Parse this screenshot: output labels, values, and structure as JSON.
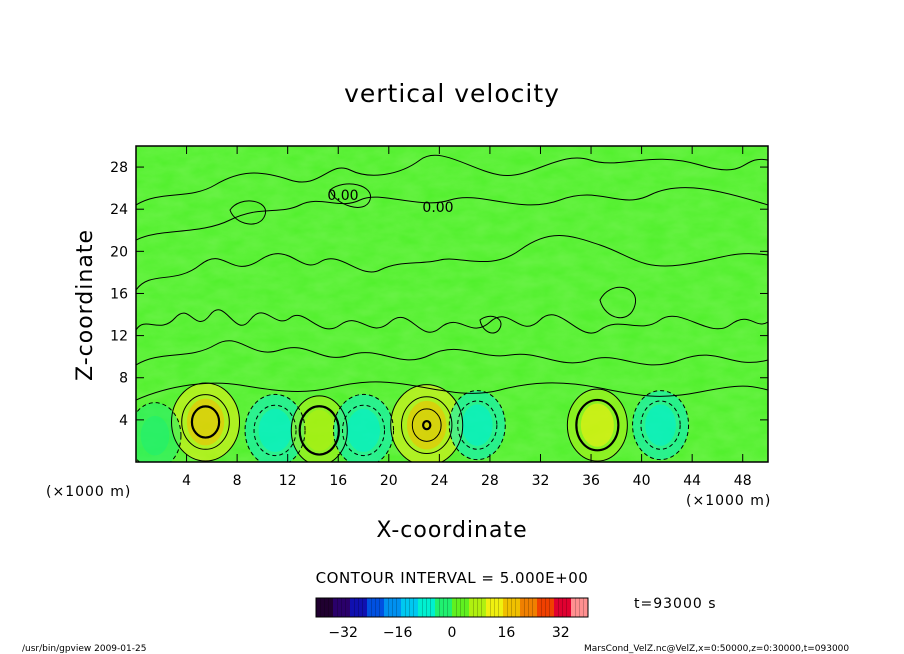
{
  "chart_data": {
    "type": "heatmap",
    "title": "vertical velocity",
    "xlabel": "X-coordinate",
    "ylabel": "Z-coordinate",
    "x_unit": "(×1000 m)",
    "y_unit": "(×1000 m)",
    "xlim": [
      0,
      50
    ],
    "ylim": [
      0,
      30
    ],
    "x_ticks": [
      "4",
      "8",
      "12",
      "16",
      "20",
      "24",
      "28",
      "32",
      "36",
      "40",
      "44",
      "48"
    ],
    "y_ticks": [
      "4",
      "8",
      "12",
      "16",
      "20",
      "24",
      "28"
    ],
    "contour_labels": [
      "0.00",
      "0.00"
    ],
    "contour_interval": "CONTOUR INTERVAL = 5.000E+00",
    "time": "t=93000 s",
    "colorbar": {
      "min": -40,
      "max": 40,
      "ticks": [
        "−32",
        "−16",
        "0",
        "16",
        "32"
      ],
      "colors": [
        "#200030",
        "#2a006a",
        "#1010b0",
        "#0050e0",
        "#0090f0",
        "#00c8f0",
        "#00f0d0",
        "#20f070",
        "#60f020",
        "#b0f010",
        "#f0f010",
        "#f0c000",
        "#f08000",
        "#f04000",
        "#e00030",
        "#ff9090"
      ]
    },
    "cells": [
      {
        "x": 5.5,
        "z": 3.8,
        "w": 6.0,
        "positive": true
      },
      {
        "x": 11.0,
        "z": 3.0,
        "w": -4.0,
        "positive": false
      },
      {
        "x": 14.5,
        "z": 3.0,
        "w": 3.0,
        "positive": true
      },
      {
        "x": 18.0,
        "z": 3.0,
        "w": -4.0,
        "positive": false
      },
      {
        "x": 23.0,
        "z": 3.5,
        "w": 7.0,
        "positive": true
      },
      {
        "x": 27.0,
        "z": 3.5,
        "w": -3.0,
        "positive": false
      },
      {
        "x": 36.5,
        "z": 3.5,
        "w": 4.0,
        "positive": true
      },
      {
        "x": 41.5,
        "z": 3.5,
        "w": -3.0,
        "positive": false
      },
      {
        "x": 1.5,
        "z": 2.5,
        "w": -2.0,
        "positive": false
      }
    ]
  },
  "footer": {
    "program": "/usr/bin/gpview   2009-01-25",
    "source": "MarsCond_VelZ.nc@VelZ,x=0:50000,z=0:30000,t=093000"
  }
}
